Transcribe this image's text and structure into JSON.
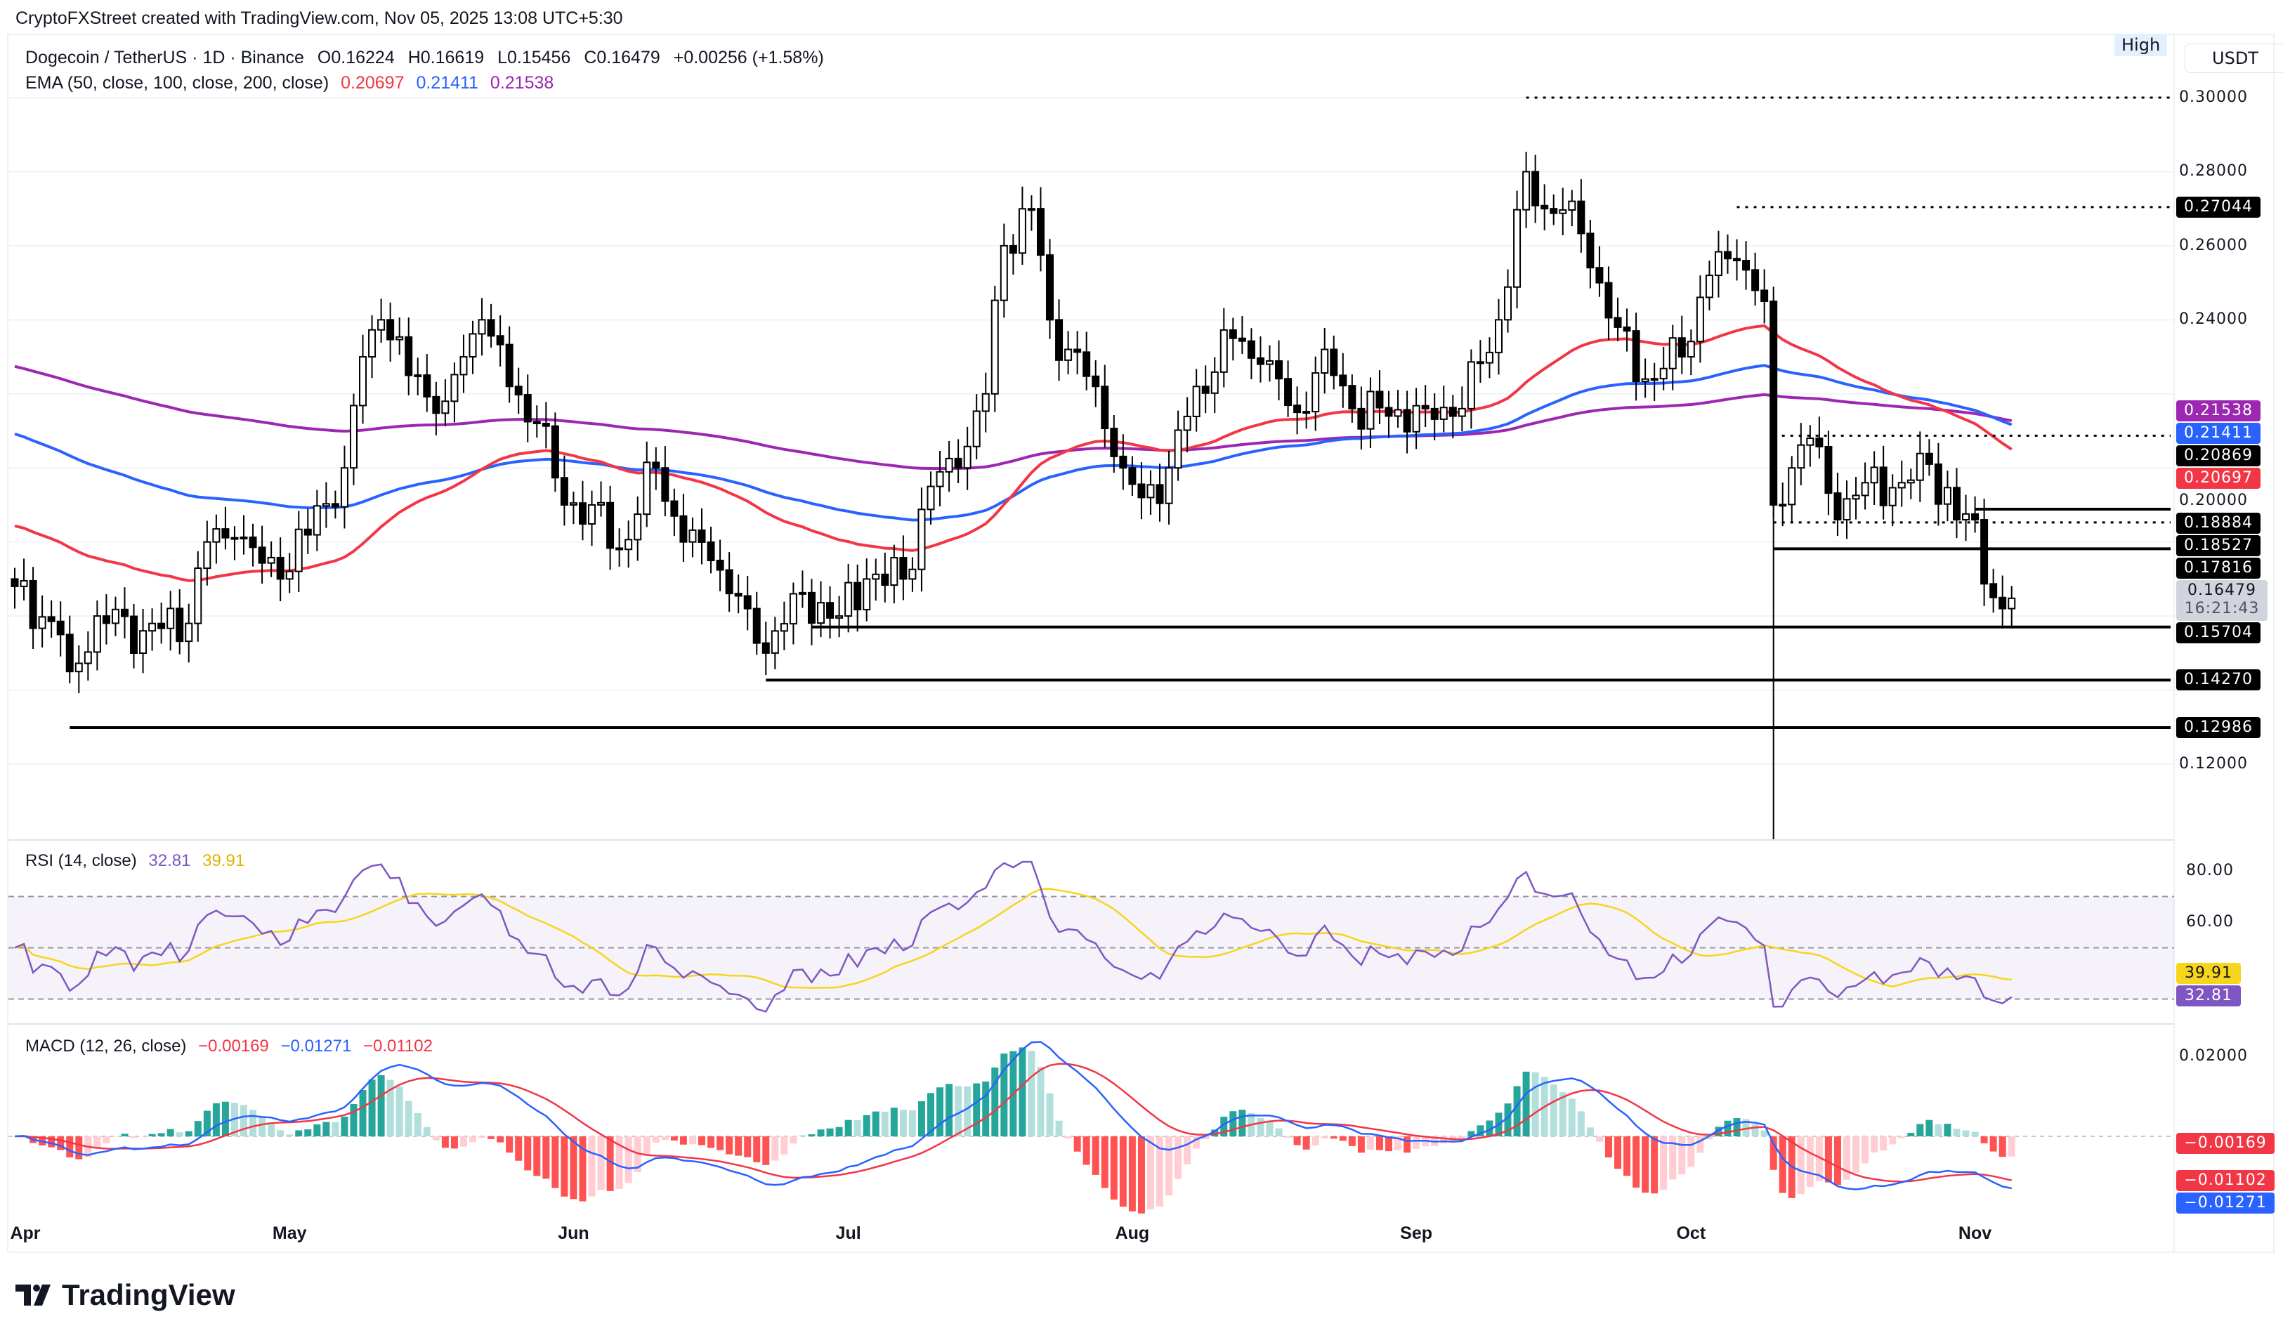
{
  "credit": "CryptoFXStreet created with TradingView.com, Nov 05, 2025 13:08 UTC+5:30",
  "symbol": {
    "name": "Dogecoin / TetherUS · 1D · Binance",
    "open": "O0.16224",
    "high": "H0.16619",
    "low": "L0.15456",
    "close": "C0.16479",
    "change": "+0.00256 (+1.58%)"
  },
  "ema": {
    "label": "EMA (50, close, 100, close, 200, close)",
    "v50": "0.20697",
    "v100": "0.21411",
    "v200": "0.21538",
    "colors": {
      "ema50": "#f23645",
      "ema100": "#2962ff",
      "ema200": "#9c27b0"
    }
  },
  "axis": {
    "currency": "USDT",
    "high_tag": "High",
    "ticks": [
      "0.30000",
      "0.28000",
      "0.26000",
      "0.24000",
      "0.20000",
      "0.12000"
    ],
    "price_labels": [
      {
        "value": "0.27044",
        "kind": "level"
      },
      {
        "value": "0.21538",
        "kind": "ema200"
      },
      {
        "value": "0.21411",
        "kind": "ema100"
      },
      {
        "value": "0.20869",
        "kind": "level"
      },
      {
        "value": "0.20697",
        "kind": "ema50"
      },
      {
        "value": "0.18884",
        "kind": "level"
      },
      {
        "value": "0.18527",
        "kind": "level"
      },
      {
        "value": "0.17816",
        "kind": "level"
      },
      {
        "value": "0.15704",
        "kind": "level"
      },
      {
        "value": "0.14270",
        "kind": "level"
      },
      {
        "value": "0.12986",
        "kind": "level"
      }
    ],
    "last_price": "0.16479",
    "countdown": "16:21:43",
    "months": [
      "Apr",
      "May",
      "Jun",
      "Jul",
      "Aug",
      "Sep",
      "Oct",
      "Nov"
    ]
  },
  "rsi": {
    "label": "RSI (14, close)",
    "value": "32.81",
    "ma": "39.91",
    "ticks": [
      "80.00",
      "60.00"
    ],
    "colors": {
      "rsi": "#7e57c2",
      "ma": "#f7d51d"
    }
  },
  "macd": {
    "label": "MACD (12, 26, close)",
    "hist": "−0.00169",
    "macd": "−0.01271",
    "signal": "−0.01102",
    "ticks": [
      "0.02000"
    ],
    "colors": {
      "macd": "#2962ff",
      "signal": "#f23645",
      "up": "#26a69a",
      "down": "#ff5252"
    }
  },
  "brand": "TradingView",
  "chart_data": {
    "type": "candlestick",
    "start_date": "2025-04-01",
    "end_date": "2025-11-05",
    "ylim": [
      0.1,
      0.31
    ],
    "close_waypoints": [
      [
        "2025-04-01",
        0.168
      ],
      [
        "2025-04-06",
        0.155
      ],
      [
        "2025-04-07",
        0.145
      ],
      [
        "2025-04-10",
        0.16
      ],
      [
        "2025-04-15",
        0.156
      ],
      [
        "2025-04-20",
        0.158
      ],
      [
        "2025-04-22",
        0.18
      ],
      [
        "2025-04-25",
        0.181
      ],
      [
        "2025-04-30",
        0.17
      ],
      [
        "2025-05-07",
        0.2
      ],
      [
        "2025-05-09",
        0.23
      ],
      [
        "2025-05-11",
        0.24
      ],
      [
        "2025-05-14",
        0.225
      ],
      [
        "2025-05-18",
        0.218
      ],
      [
        "2025-05-20",
        0.23
      ],
      [
        "2025-05-22",
        0.24
      ],
      [
        "2025-05-25",
        0.222
      ],
      [
        "2025-05-28",
        0.212
      ],
      [
        "2025-05-31",
        0.19
      ],
      [
        "2025-06-03",
        0.19
      ],
      [
        "2025-06-06",
        0.178
      ],
      [
        "2025-06-10",
        0.2
      ],
      [
        "2025-06-13",
        0.18
      ],
      [
        "2025-06-16",
        0.175
      ],
      [
        "2025-06-20",
        0.162
      ],
      [
        "2025-06-22",
        0.15
      ],
      [
        "2025-06-25",
        0.166
      ],
      [
        "2025-06-30",
        0.16
      ],
      [
        "2025-07-03",
        0.17
      ],
      [
        "2025-07-07",
        0.17
      ],
      [
        "2025-07-10",
        0.195
      ],
      [
        "2025-07-13",
        0.2
      ],
      [
        "2025-07-16",
        0.22
      ],
      [
        "2025-07-18",
        0.26
      ],
      [
        "2025-07-21",
        0.27
      ],
      [
        "2025-07-23",
        0.24
      ],
      [
        "2025-07-25",
        0.232
      ],
      [
        "2025-07-28",
        0.222
      ],
      [
        "2025-07-31",
        0.2
      ],
      [
        "2025-08-02",
        0.192
      ],
      [
        "2025-08-05",
        0.2
      ],
      [
        "2025-08-08",
        0.222
      ],
      [
        "2025-08-12",
        0.235
      ],
      [
        "2025-08-15",
        0.228
      ],
      [
        "2025-08-19",
        0.215
      ],
      [
        "2025-08-22",
        0.232
      ],
      [
        "2025-08-25",
        0.216
      ],
      [
        "2025-08-29",
        0.214
      ],
      [
        "2025-09-02",
        0.216
      ],
      [
        "2025-09-06",
        0.216
      ],
      [
        "2025-09-10",
        0.24
      ],
      [
        "2025-09-13",
        0.28
      ],
      [
        "2025-09-15",
        0.27
      ],
      [
        "2025-09-18",
        0.272
      ],
      [
        "2025-09-21",
        0.25
      ],
      [
        "2025-09-23",
        0.238
      ],
      [
        "2025-09-26",
        0.224
      ],
      [
        "2025-09-30",
        0.23
      ],
      [
        "2025-10-03",
        0.252
      ],
      [
        "2025-10-06",
        0.256
      ],
      [
        "2025-10-09",
        0.245
      ],
      [
        "2025-10-10",
        0.19
      ],
      [
        "2025-10-12",
        0.2
      ],
      [
        "2025-10-14",
        0.208
      ],
      [
        "2025-10-17",
        0.186
      ],
      [
        "2025-10-20",
        0.196
      ],
      [
        "2025-10-24",
        0.196
      ],
      [
        "2025-10-27",
        0.201
      ],
      [
        "2025-10-30",
        0.186
      ],
      [
        "2025-11-01",
        0.186
      ],
      [
        "2025-11-03",
        0.165
      ],
      [
        "2025-11-04",
        0.162
      ],
      [
        "2025-11-05",
        0.16479
      ]
    ],
    "levels": [
      {
        "price": 0.3,
        "from": "2025-09-13",
        "style": "dotted"
      },
      {
        "price": 0.27044,
        "from": "2025-10-06",
        "style": "dotted"
      },
      {
        "price": 0.20869,
        "from": "2025-10-10",
        "style": "dotted"
      },
      {
        "price": 0.18884,
        "from": "2025-11-01",
        "style": "solid"
      },
      {
        "price": 0.18527,
        "from": "2025-10-10",
        "style": "dotted"
      },
      {
        "price": 0.17816,
        "from": "2025-10-10",
        "style": "solid"
      },
      {
        "price": 0.15704,
        "from": "2025-06-27",
        "style": "solid"
      },
      {
        "price": 0.1427,
        "from": "2025-06-22",
        "style": "solid"
      },
      {
        "price": 0.12986,
        "from": "2025-04-07",
        "style": "solid"
      }
    ]
  }
}
